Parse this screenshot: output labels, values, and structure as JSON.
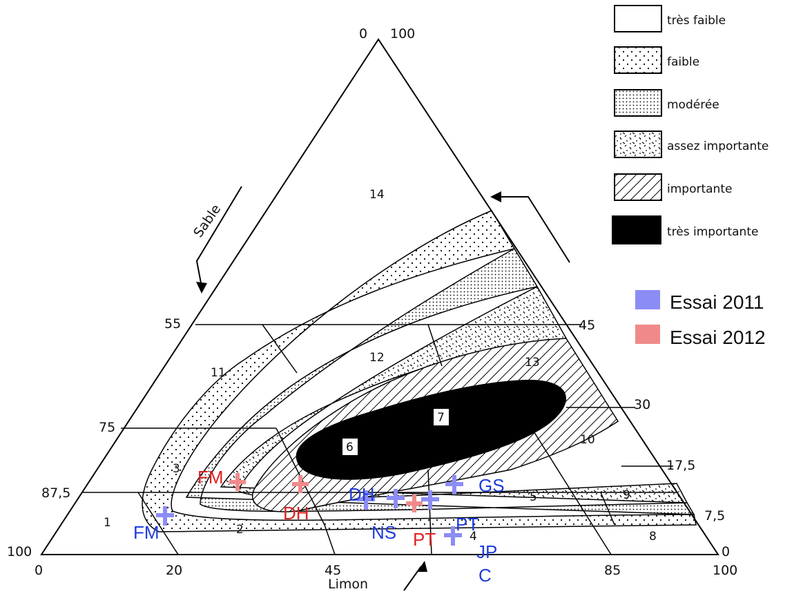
{
  "axes": {
    "top_left": "0",
    "top_right": "100",
    "left_55": "55",
    "left_75": "75",
    "left_87": "87,5",
    "left_100": "100",
    "bottom_0": "0",
    "bottom_20": "20",
    "bottom_45": "45",
    "bottom_85": "85",
    "bottom_100": "100",
    "right_45": "45",
    "right_30": "30",
    "right_17": "17,5",
    "right_7": "7,5",
    "right_0": "0",
    "sable_label": "Sable",
    "limon_label": "Limon"
  },
  "zones": {
    "z14": "14",
    "z11": "11",
    "z12": "12",
    "z13": "13",
    "z7": "7",
    "z6": "6",
    "z10": "10",
    "z3": "3",
    "z1": "1",
    "z2": "2",
    "z5": "5",
    "z9": "9",
    "z8": "8",
    "z4": "4"
  },
  "markers_2011": [
    "FM",
    "DH",
    "NS",
    "GS",
    "PT",
    "JP",
    "C"
  ],
  "markers_2012": [
    "FM",
    "DH",
    "PT"
  ],
  "legend": {
    "items": [
      "très faible",
      "faible",
      "modérée",
      "assez importante",
      "importante",
      "très importante"
    ],
    "essai_2011": "Essai 2011",
    "essai_2012": "Essai 2012"
  },
  "colors": {
    "blue_2011": "#1e3cdc",
    "red_2012": "#e02020",
    "blue_swatch": "#8c8cf5",
    "red_swatch": "#f08a8a",
    "black": "#000000"
  }
}
